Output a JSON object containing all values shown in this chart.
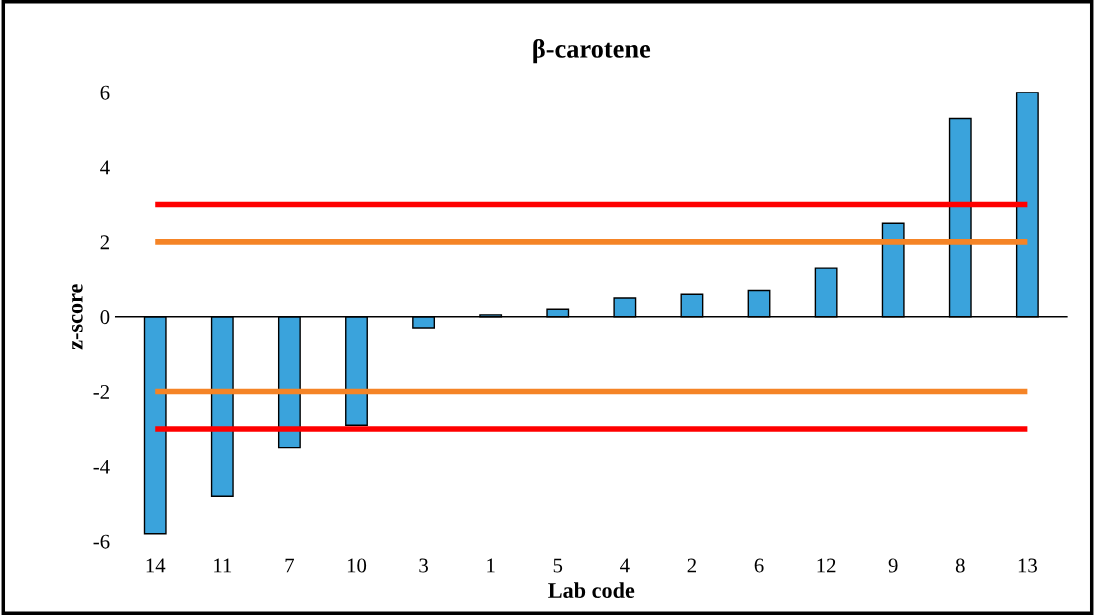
{
  "chart_data": {
    "type": "bar",
    "title": "β-carotene",
    "xlabel": "Lab code",
    "ylabel": "z-score",
    "categories": [
      "14",
      "11",
      "7",
      "10",
      "3",
      "1",
      "5",
      "4",
      "2",
      "6",
      "12",
      "9",
      "8",
      "13"
    ],
    "values": [
      -5.8,
      -4.8,
      -3.5,
      -2.9,
      -0.3,
      0.05,
      0.2,
      0.5,
      0.6,
      0.7,
      1.3,
      2.5,
      5.3,
      6.0
    ],
    "color": "#3aa3dc",
    "ylim": [
      -6,
      6
    ],
    "yticks": [
      -6,
      -4,
      -2,
      0,
      2,
      4,
      6
    ],
    "ref_lines": [
      {
        "axis": "y",
        "value": 3,
        "color": "#ff0000"
      },
      {
        "axis": "y",
        "value": 2,
        "color": "#f58426"
      },
      {
        "axis": "y",
        "value": -2,
        "color": "#f58426"
      },
      {
        "axis": "y",
        "value": -3,
        "color": "#ff0000"
      }
    ],
    "grid": false,
    "legend": false
  }
}
